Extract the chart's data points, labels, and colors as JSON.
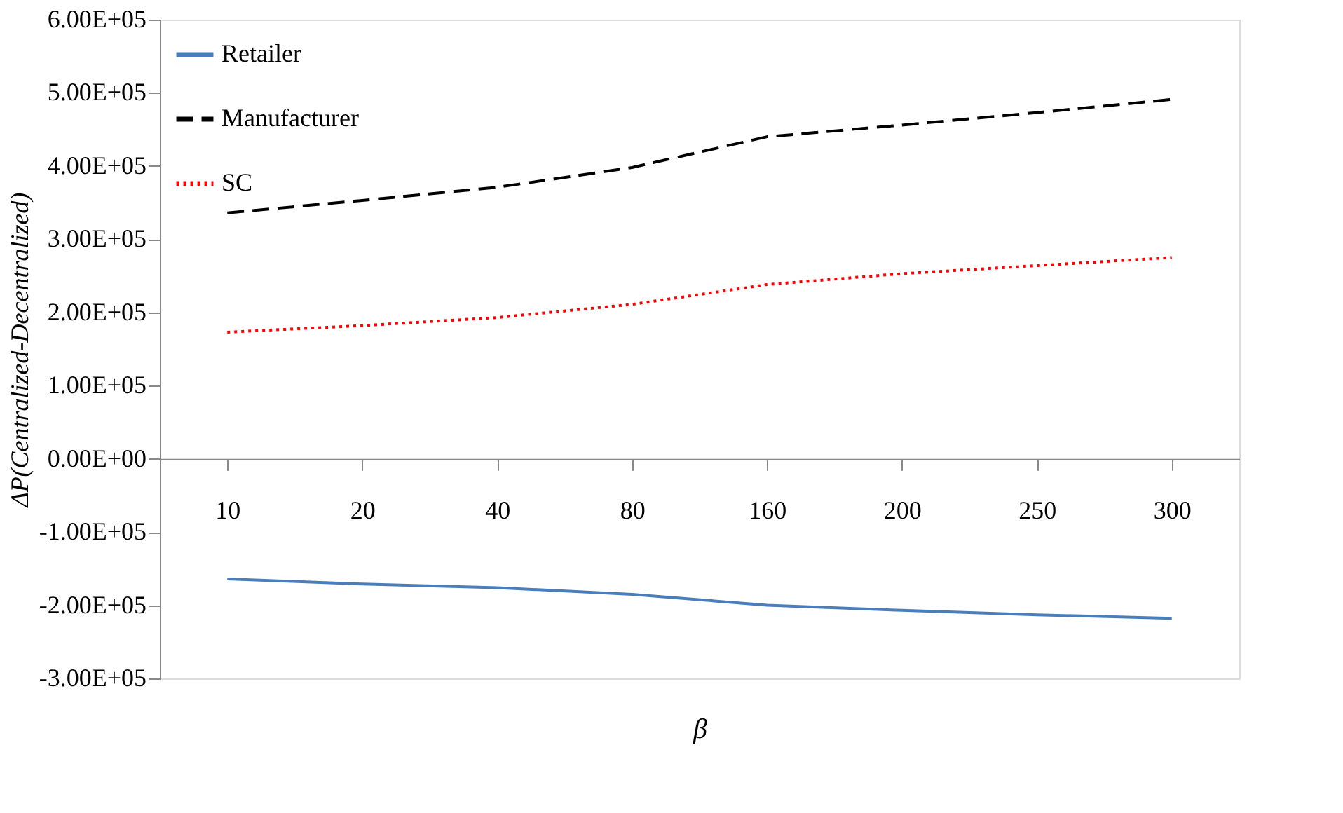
{
  "chart_data": {
    "type": "line",
    "xlabel": "β",
    "ylabel": "ΔP(Centralized-Decentralized)",
    "categories": [
      "10",
      "20",
      "40",
      "80",
      "160",
      "200",
      "250",
      "300"
    ],
    "ylim": [
      -300000,
      600000
    ],
    "yticks": [
      {
        "value": -300000,
        "label": "-3.00E+05"
      },
      {
        "value": -200000,
        "label": "-2.00E+05"
      },
      {
        "value": -100000,
        "label": "-1.00E+05"
      },
      {
        "value": 0,
        "label": "0.00E+00"
      },
      {
        "value": 100000,
        "label": "1.00E+05"
      },
      {
        "value": 200000,
        "label": "2.00E+05"
      },
      {
        "value": 300000,
        "label": "3.00E+05"
      },
      {
        "value": 400000,
        "label": "4.00E+05"
      },
      {
        "value": 500000,
        "label": "5.00E+05"
      },
      {
        "value": 600000,
        "label": "6.00E+05"
      }
    ],
    "grid": false,
    "legend": "top left",
    "marker": "none",
    "series": [
      {
        "name": "Retailer",
        "color": "#4a7ebb",
        "line_style": "solid",
        "values": [
          -164000,
          -171000,
          -176000,
          -185000,
          -200000,
          -207000,
          -213000,
          -218000
        ]
      },
      {
        "name": "Manufacturer",
        "color": "#000000",
        "line_style": "dashed",
        "values": [
          336000,
          353000,
          371000,
          398000,
          440000,
          456000,
          473000,
          491000
        ]
      },
      {
        "name": "SC",
        "color": "#ff0000",
        "line_style": "dotted",
        "values": [
          173000,
          182000,
          193000,
          211000,
          238000,
          253000,
          264000,
          275000
        ]
      }
    ]
  }
}
